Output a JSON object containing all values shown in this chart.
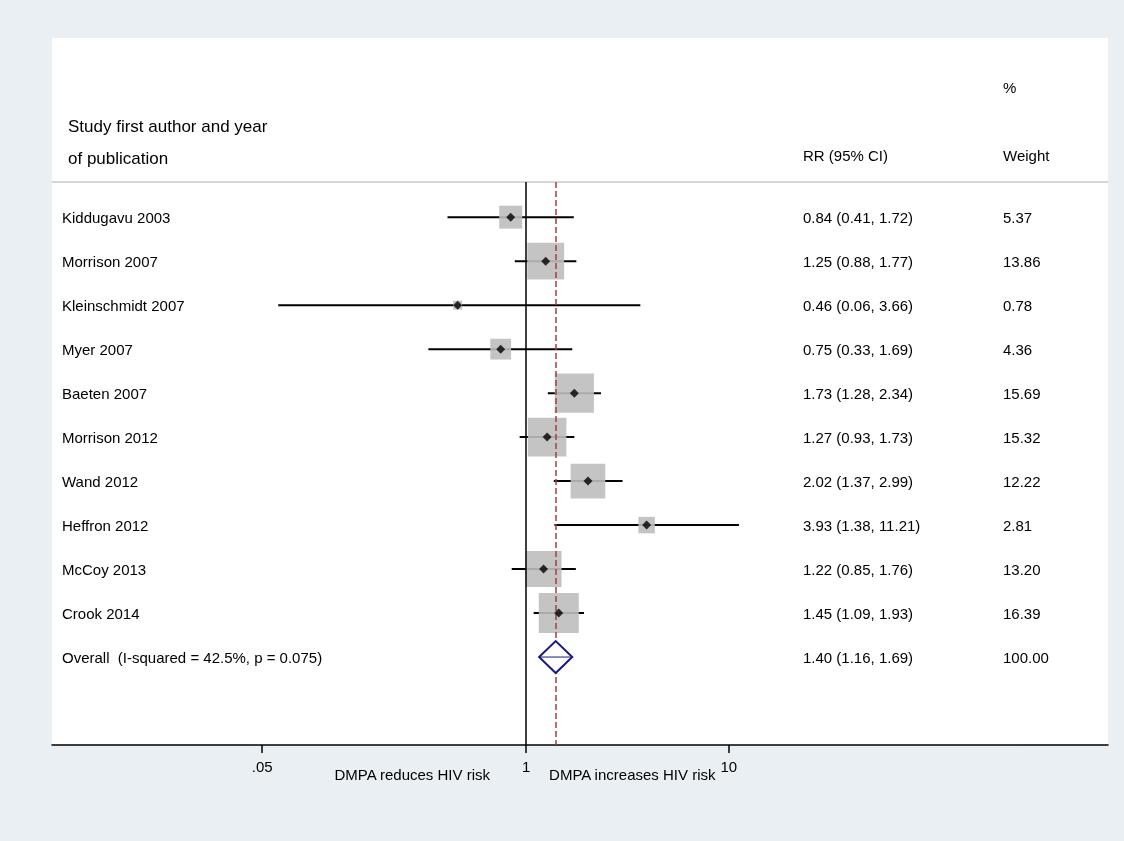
{
  "chart_data": {
    "type": "bubble",
    "orientation": "horizontal",
    "ylabel": "Study first author and year\nof publication",
    "categories": [
      "Kiddugavu 2003",
      "Morrison 2007",
      "Kleinschmidt 2007",
      "Myer 2007",
      "Baeten 2007",
      "Morrison 2012",
      "Wand 2012",
      "Heffron 2012",
      "McCoy 2013",
      "Crook 2014",
      "Overall  (I-squared = 42.5%, p = 0.075)"
    ],
    "series": [
      {
        "type": "bubble",
        "marker": "square",
        "color": "#bebebe",
        "values": [
          0.84,
          1.25,
          0.46,
          0.75,
          1.73,
          1.27,
          2.02,
          3.93,
          1.22,
          1.45,
          null
        ],
        "errors": [
          [
            0.41,
            1.72
          ],
          [
            0.88,
            1.77
          ],
          [
            0.06,
            3.66
          ],
          [
            0.33,
            1.69
          ],
          [
            1.28,
            2.34
          ],
          [
            0.93,
            1.73
          ],
          [
            1.37,
            2.99
          ],
          [
            1.38,
            11.21
          ],
          [
            0.85,
            1.76
          ],
          [
            1.09,
            1.93
          ],
          null
        ],
        "sizes": [
          0.33,
          0.85,
          0.05,
          0.27,
          0.96,
          0.93,
          0.75,
          0.17,
          0.81,
          1,
          null
        ]
      },
      {
        "type": "scatter",
        "marker": "diamond",
        "color": "#1a1a80",
        "values": [
          null,
          null,
          null,
          null,
          null,
          null,
          null,
          null,
          null,
          null,
          1.4
        ],
        "errors": [
          null,
          null,
          null,
          null,
          null,
          null,
          null,
          null,
          null,
          null,
          [
            1.16,
            1.69
          ]
        ]
      }
    ],
    "log": "x",
    "xlim": [
      0.0046,
      740
    ],
    "xticks": [
      {
        "value": 0.05,
        "label": ".05"
      },
      1,
      10
    ],
    "ref_lines": [
      {
        "axis": "x",
        "value": 1,
        "color": "#000000",
        "line_style": "solid"
      },
      {
        "axis": "x",
        "value": 1.4,
        "color": "#a0403c",
        "line_style": "dashed"
      }
    ],
    "annotations": [
      "RR (95% CI)",
      "%\nWeight",
      "DMPA reduces HIV risk",
      "DMPA increases HIV risk",
      "0.84 (0.41, 1.72)",
      "1.25 (0.88, 1.77)",
      "0.46 (0.06, 3.66)",
      "0.75 (0.33, 1.69)",
      "1.73 (1.28, 2.34)",
      "1.27 (0.93, 1.73)",
      "2.02 (1.37, 2.99)",
      "3.93 (1.38, 11.21)",
      "1.22 (0.85, 1.76)",
      "1.45 (1.09, 1.93)",
      "1.40 (1.16, 1.69)",
      "5.37",
      "13.86",
      "0.78",
      "4.36",
      "15.69",
      "15.32",
      "12.22",
      "2.81",
      "13.20",
      "16.39",
      "100.00"
    ]
  }
}
